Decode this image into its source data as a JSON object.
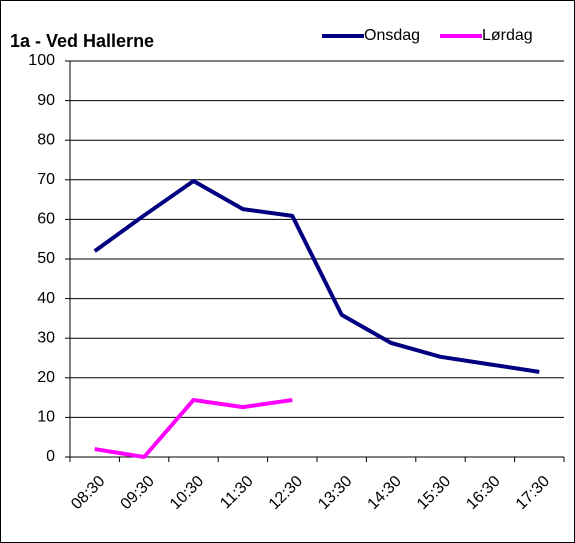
{
  "chart_data": {
    "type": "line",
    "title": "1a - Ved Hallerne",
    "categories": [
      "08:30",
      "09:30",
      "10:30",
      "11:30",
      "12:30",
      "13:30",
      "14:30",
      "15:30",
      "16:30",
      "17:30"
    ],
    "series": [
      {
        "name": "Onsdag",
        "color": "#000080",
        "values": [
          52,
          61,
          69.7,
          62.6,
          60.9,
          35.9,
          28.8,
          25.3,
          23.4,
          21.5
        ]
      },
      {
        "name": "Lørdag",
        "color": "#ff00ff",
        "values": [
          2,
          0,
          14.4,
          12.6,
          14.4,
          null,
          null,
          null,
          null,
          null
        ]
      }
    ],
    "ylim": [
      0,
      100
    ],
    "yticks": [
      0,
      10,
      20,
      30,
      40,
      50,
      60,
      70,
      80,
      90,
      100
    ],
    "grid": true,
    "legend": "top-right"
  }
}
